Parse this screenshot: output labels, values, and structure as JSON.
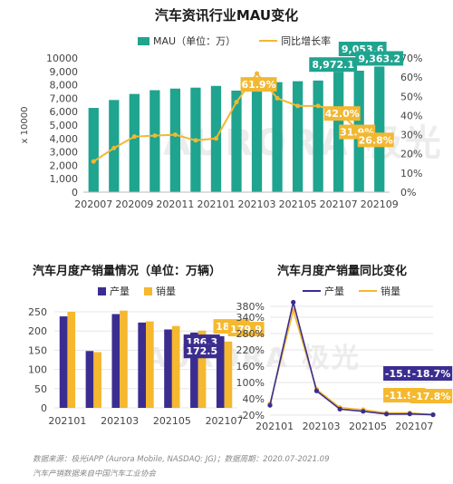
{
  "colors": {
    "teal": "#1fa48f",
    "gold": "#f2b832",
    "purple": "#3b2d8f",
    "yellow": "#f5b82e"
  },
  "watermark": {
    "text": "AURORA",
    "cn": "极光"
  },
  "chart1": {
    "title": "汽车资讯行业MAU变化",
    "legend_bar": "MAU（单位：万）",
    "legend_line": "同比增长率",
    "ylabel": "x 10000",
    "left_ticks": [
      "0",
      "1,000",
      "2,000",
      "3,000",
      "4,000",
      "5,000",
      "6,000",
      "7,000",
      "8,000",
      "9,000",
      "10000"
    ],
    "right_ticks": [
      "0%",
      "10%",
      "20%",
      "30%",
      "40%",
      "50%",
      "60%",
      "70%"
    ],
    "x_ticks": [
      "202007",
      "202009",
      "202011",
      "202101",
      "202103",
      "202105",
      "202107",
      "202109"
    ]
  },
  "chart2": {
    "title": "汽车月度产销量情况（单位：万辆）",
    "legend_a": "产量",
    "legend_b": "销量",
    "y_ticks": [
      "0",
      "50",
      "100",
      "150",
      "200",
      "250"
    ],
    "x_ticks": [
      "202101",
      "202103",
      "202105",
      "202107"
    ]
  },
  "chart3": {
    "title": "汽车月度产销量同比变化",
    "legend_a": "产量",
    "legend_b": "销量",
    "y_ticks": [
      "-20%",
      "40%",
      "100%",
      "160%",
      "220%",
      "280%",
      "340%",
      "380%"
    ],
    "x_ticks": [
      "202101",
      "202103",
      "202105",
      "202107"
    ]
  },
  "footnote": {
    "line1": "数据来源：极光iAPP (Aurora Mobile, NASDAQ: JG)；数据周期：2020.07-2021.09",
    "line2": "汽车产销数据来自中国汽车工业协会"
  },
  "chart_data": [
    {
      "type": "bar",
      "title": "汽车资讯行业MAU变化",
      "xlabel": "",
      "ylabel": "x 10000",
      "categories": [
        "202007",
        "202008",
        "202009",
        "202010",
        "202011",
        "202012",
        "202101",
        "202102",
        "202103",
        "202104",
        "202105",
        "202106",
        "202107",
        "202108",
        "202109"
      ],
      "ylim": [
        0,
        10000
      ],
      "y2lim": [
        0,
        0.7
      ],
      "series": [
        {
          "name": "MAU（单位：万）",
          "type": "bar",
          "axis": "left",
          "values": [
            6280,
            6870,
            7320,
            7600,
            7720,
            7790,
            7920,
            7570,
            7900,
            8200,
            8270,
            8320,
            8972.1,
            9053.6,
            9363.2
          ],
          "labels": {
            "12": "8,972.1",
            "13": "9,053.6",
            "14": "9,363.2"
          }
        },
        {
          "name": "同比增长率",
          "type": "line",
          "axis": "right",
          "values": [
            0.16,
            0.23,
            0.29,
            0.295,
            0.3,
            0.27,
            0.28,
            0.47,
            0.619,
            0.49,
            0.45,
            0.45,
            0.42,
            0.319,
            0.268
          ],
          "labels": {
            "8": "61.9%",
            "12": "42.0%",
            "13": "31.9%",
            "14": "26.8%"
          }
        }
      ],
      "grid": false,
      "legend": "top"
    },
    {
      "type": "bar",
      "title": "汽车月度产销量情况（单位：万辆）",
      "xlabel": "",
      "ylabel": "",
      "categories": [
        "202101",
        "202102",
        "202103",
        "202104",
        "202105",
        "202106",
        "202107"
      ],
      "ylim": [
        0,
        270
      ],
      "series": [
        {
          "name": "产量",
          "values": [
            238,
            148,
            244,
            222,
            204,
            196,
            186.3
          ],
          "labels": {
            "6": "186.3"
          }
        },
        {
          "name": "销量",
          "values": [
            250,
            145,
            253,
            225,
            213,
            201,
            172.5
          ],
          "labels": {
            "6": "172.5"
          }
        }
      ],
      "extra_labels": [
        "186.4",
        "179.9"
      ],
      "grid": true,
      "legend": "top"
    },
    {
      "type": "line",
      "title": "汽车月度产销量同比变化",
      "xlabel": "",
      "ylabel": "",
      "categories": [
        "202101",
        "202102",
        "202103",
        "202104",
        "202105",
        "202106",
        "202107",
        "202108"
      ],
      "ylim": [
        -0.2,
        4.0
      ],
      "series": [
        {
          "name": "产量",
          "values": [
            0.16,
            4.18,
            0.69,
            0.02,
            -0.06,
            -0.16,
            -0.155,
            -0.187
          ],
          "labels": {
            "6": "-15.5%",
            "7": "-18.7%"
          }
        },
        {
          "name": "销量",
          "values": [
            0.22,
            3.65,
            0.75,
            0.08,
            0.0,
            -0.12,
            -0.119,
            -0.178
          ],
          "labels": {
            "6": "-11.9%",
            "7": "-17.8%"
          }
        }
      ],
      "grid": true,
      "legend": "top"
    }
  ]
}
